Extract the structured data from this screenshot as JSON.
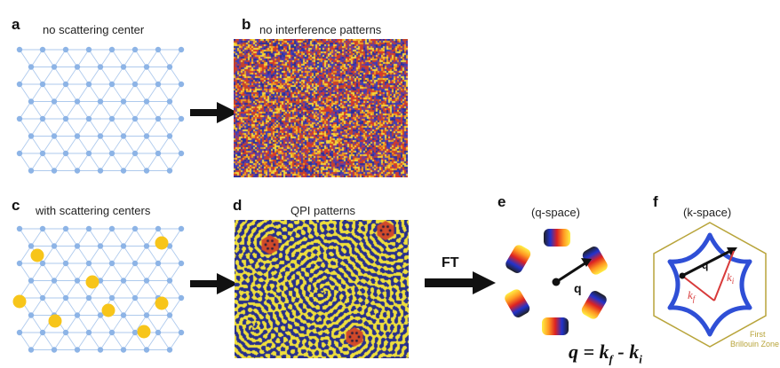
{
  "panels": {
    "a": {
      "letter": "a",
      "title": "no scattering center"
    },
    "b": {
      "letter": "b",
      "title": "no interference patterns"
    },
    "c": {
      "letter": "c",
      "title": "with scattering centers"
    },
    "d": {
      "letter": "d",
      "title": "QPI patterns"
    },
    "e": {
      "letter": "e",
      "title": "(q-space)",
      "vector_label": "q"
    },
    "f": {
      "letter": "f",
      "title": "(k-space)",
      "vector_label": "q",
      "ki_label": "k",
      "ki_sub": "i",
      "kf_label": "k",
      "kf_sub": "f",
      "zone_line1": "First",
      "zone_line2": "Brillouin Zone"
    }
  },
  "arrow_label": "FT",
  "equation": {
    "lhs": "q = k",
    "sub1": "f",
    "mid": " - k",
    "sub2": "i"
  },
  "colors": {
    "lattice": "#8db4e6",
    "scatterer": "#f7c51a",
    "hexagon": "#2f4fd6",
    "zone": "#b8a43a",
    "ki": "#d83a3a"
  }
}
